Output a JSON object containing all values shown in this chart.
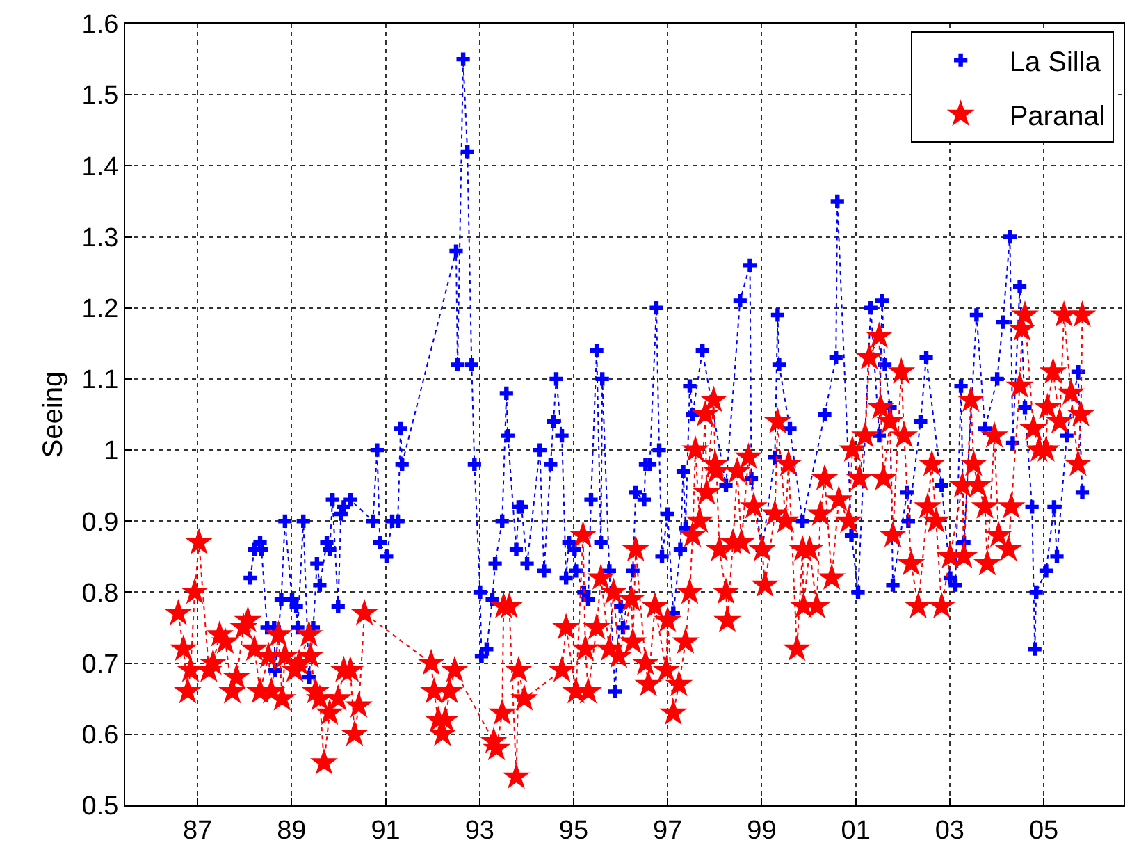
{
  "chart_data": {
    "type": "line",
    "ylabel": "Seeing",
    "xlim": [
      1985.46,
      2006.7
    ],
    "ylim": [
      0.5,
      1.6
    ],
    "xticks": [
      {
        "value": 1987,
        "label": "87"
      },
      {
        "value": 1989,
        "label": "89"
      },
      {
        "value": 1991,
        "label": "91"
      },
      {
        "value": 1993,
        "label": "93"
      },
      {
        "value": 1995,
        "label": "95"
      },
      {
        "value": 1997,
        "label": "97"
      },
      {
        "value": 1999,
        "label": "99"
      },
      {
        "value": 2001,
        "label": "01"
      },
      {
        "value": 2003,
        "label": "03"
      },
      {
        "value": 2005,
        "label": "05"
      }
    ],
    "yticks": [
      0.5,
      0.6,
      0.7,
      0.8,
      0.9,
      1,
      1.1,
      1.2,
      1.3,
      1.4,
      1.5,
      1.6
    ],
    "grid": true,
    "legend": "top right",
    "line_style": "dotted",
    "series": [
      {
        "name": "La Silla",
        "color": "#0000ff",
        "marker": "cross",
        "x": [
          1988.12,
          1988.21,
          1988.33,
          1988.36,
          1988.48,
          1988.63,
          1988.65,
          1988.78,
          1988.86,
          1989.01,
          1989.1,
          1989.13,
          1989.25,
          1989.37,
          1989.46,
          1989.54,
          1989.6,
          1989.75,
          1989.81,
          1989.87,
          1989.99,
          1990.05,
          1990.11,
          1990.25,
          1990.73,
          1990.82,
          1990.88,
          1991.02,
          1991.14,
          1991.26,
          1991.32,
          1991.35,
          1992.5,
          1992.53,
          1992.65,
          1992.74,
          1992.83,
          1992.89,
          1993.01,
          1993.04,
          1993.15,
          1993.27,
          1993.33,
          1993.48,
          1993.57,
          1993.6,
          1993.78,
          1993.83,
          1993.89,
          1994.01,
          1994.28,
          1994.37,
          1994.51,
          1994.57,
          1994.63,
          1994.75,
          1994.84,
          1994.9,
          1995.02,
          1995.05,
          1995.22,
          1995.31,
          1995.37,
          1995.49,
          1995.58,
          1995.61,
          1995.76,
          1995.88,
          1996.0,
          1996.05,
          1996.26,
          1996.32,
          1996.5,
          1996.53,
          1996.62,
          1996.76,
          1996.82,
          1996.88,
          1997.0,
          1997.12,
          1997.27,
          1997.33,
          1997.38,
          1997.47,
          1997.53,
          1997.74,
          1998.24,
          1998.54,
          1998.75,
          1998.78,
          1999.01,
          1999.28,
          1999.34,
          1999.37,
          1999.6,
          1999.87,
          2000.34,
          2000.58,
          2000.61,
          2000.91,
          2001.05,
          2001.32,
          2001.5,
          2001.56,
          2001.62,
          2001.73,
          2001.79,
          2002.09,
          2002.12,
          2002.38,
          2002.5,
          2002.83,
          2003.01,
          2003.12,
          2003.24,
          2003.3,
          2003.57,
          2003.75,
          2004.01,
          2004.13,
          2004.28,
          2004.34,
          2004.49,
          2004.6,
          2004.75,
          2004.81,
          2004.84,
          2005.05,
          2005.22,
          2005.28,
          2005.49,
          2005.73,
          2005.82
        ],
        "values": [
          0.82,
          0.86,
          0.87,
          0.86,
          0.75,
          0.75,
          0.69,
          0.79,
          0.9,
          0.79,
          0.78,
          0.75,
          0.9,
          0.68,
          0.75,
          0.84,
          0.81,
          0.87,
          0.86,
          0.93,
          0.78,
          0.91,
          0.92,
          0.93,
          0.9,
          1.0,
          0.87,
          0.85,
          0.9,
          0.9,
          1.03,
          0.98,
          1.28,
          1.12,
          1.55,
          1.42,
          1.12,
          0.98,
          0.8,
          0.71,
          0.72,
          0.79,
          0.84,
          0.9,
          1.08,
          1.02,
          0.86,
          0.92,
          0.92,
          0.84,
          1.0,
          0.83,
          0.98,
          1.04,
          1.1,
          1.02,
          0.82,
          0.87,
          0.86,
          0.83,
          0.8,
          0.79,
          0.93,
          1.14,
          0.87,
          1.1,
          0.83,
          0.66,
          0.78,
          0.75,
          0.83,
          0.94,
          0.93,
          0.98,
          0.98,
          1.2,
          1.0,
          0.85,
          0.91,
          0.77,
          0.86,
          0.97,
          0.89,
          1.09,
          1.05,
          1.14,
          0.95,
          1.21,
          1.26,
          0.96,
          0.86,
          0.99,
          1.19,
          1.12,
          1.03,
          0.9,
          1.05,
          1.13,
          1.35,
          0.88,
          0.8,
          1.2,
          1.02,
          1.21,
          1.12,
          1.06,
          0.81,
          0.94,
          0.9,
          1.04,
          1.13,
          0.95,
          0.82,
          0.81,
          1.09,
          0.87,
          1.19,
          1.03,
          1.1,
          1.18,
          1.3,
          1.01,
          1.23,
          1.06,
          0.92,
          0.72,
          0.8,
          0.83,
          0.92,
          0.85,
          1.02,
          1.11,
          0.94
        ]
      },
      {
        "name": "Paranal",
        "color": "#ff0000",
        "marker": "star",
        "x": [
          1986.59,
          1986.7,
          1986.79,
          1986.85,
          1986.94,
          1987.03,
          1987.24,
          1987.33,
          1987.47,
          1987.59,
          1987.74,
          1987.83,
          1987.98,
          1988.07,
          1988.21,
          1988.33,
          1988.51,
          1988.57,
          1988.72,
          1988.8,
          1988.86,
          1989.07,
          1989.16,
          1989.37,
          1989.4,
          1989.51,
          1989.6,
          1989.69,
          1989.81,
          1989.99,
          1990.11,
          1990.25,
          1990.34,
          1990.43,
          1990.55,
          1991.97,
          1992.03,
          1992.12,
          1992.21,
          1992.27,
          1992.36,
          1992.47,
          1993.3,
          1993.36,
          1993.48,
          1993.51,
          1993.63,
          1993.78,
          1993.83,
          1993.95,
          1994.75,
          1994.84,
          1995.05,
          1995.2,
          1995.25,
          1995.31,
          1995.49,
          1995.58,
          1995.76,
          1995.85,
          1995.96,
          1996.23,
          1996.26,
          1996.32,
          1996.53,
          1996.59,
          1996.73,
          1996.97,
          1997.0,
          1997.12,
          1997.24,
          1997.38,
          1997.47,
          1997.53,
          1997.59,
          1997.68,
          1997.8,
          1997.83,
          1997.98,
          1998.01,
          1998.04,
          1998.1,
          1998.24,
          1998.27,
          1998.39,
          1998.48,
          1998.57,
          1998.72,
          1998.83,
          1999.01,
          1999.07,
          1999.28,
          1999.34,
          1999.51,
          1999.57,
          1999.75,
          1999.87,
          1999.89,
          2000.02,
          2000.17,
          2000.25,
          2000.34,
          2000.49,
          2000.64,
          2000.85,
          2000.93,
          2001.08,
          2001.2,
          2001.29,
          2001.5,
          2001.53,
          2001.59,
          2001.73,
          2001.79,
          2001.97,
          2002.03,
          2002.18,
          2002.33,
          2002.53,
          2002.62,
          2002.71,
          2002.83,
          2003.01,
          2003.27,
          2003.3,
          2003.45,
          2003.51,
          2003.6,
          2003.75,
          2003.8,
          2003.95,
          2004.04,
          2004.25,
          2004.31,
          2004.49,
          2004.54,
          2004.6,
          2004.78,
          2004.9,
          2005.05,
          2005.08,
          2005.2,
          2005.34,
          2005.43,
          2005.58,
          2005.73,
          2005.79,
          2005.82
        ],
        "values": [
          0.77,
          0.72,
          0.66,
          0.69,
          0.8,
          0.87,
          0.69,
          0.7,
          0.74,
          0.73,
          0.66,
          0.68,
          0.75,
          0.76,
          0.72,
          0.66,
          0.71,
          0.66,
          0.74,
          0.65,
          0.71,
          0.69,
          0.7,
          0.74,
          0.71,
          0.66,
          0.65,
          0.56,
          0.63,
          0.65,
          0.69,
          0.69,
          0.6,
          0.64,
          0.77,
          0.7,
          0.66,
          0.62,
          0.6,
          0.62,
          0.66,
          0.69,
          0.59,
          0.58,
          0.63,
          0.78,
          0.78,
          0.54,
          0.69,
          0.65,
          0.69,
          0.75,
          0.66,
          0.88,
          0.72,
          0.66,
          0.75,
          0.82,
          0.72,
          0.8,
          0.71,
          0.79,
          0.73,
          0.86,
          0.7,
          0.67,
          0.78,
          0.69,
          0.76,
          0.63,
          0.67,
          0.73,
          0.8,
          0.88,
          1.0,
          0.9,
          1.05,
          0.94,
          1.07,
          0.98,
          0.97,
          0.86,
          0.8,
          0.76,
          0.87,
          0.97,
          0.87,
          0.99,
          0.92,
          0.86,
          0.81,
          0.91,
          1.04,
          0.9,
          0.98,
          0.72,
          0.86,
          0.78,
          0.86,
          0.78,
          0.91,
          0.96,
          0.82,
          0.93,
          0.9,
          1.0,
          0.96,
          1.02,
          1.13,
          1.16,
          1.06,
          0.96,
          1.04,
          0.88,
          1.11,
          1.02,
          0.84,
          0.78,
          0.92,
          0.98,
          0.9,
          0.78,
          0.85,
          0.95,
          0.85,
          1.07,
          0.98,
          0.95,
          0.92,
          0.84,
          1.02,
          0.88,
          0.86,
          0.92,
          1.09,
          1.17,
          1.19,
          1.03,
          1.0,
          1.0,
          1.06,
          1.11,
          1.04,
          1.19,
          1.08,
          0.98,
          1.05,
          1.19
        ]
      }
    ]
  }
}
